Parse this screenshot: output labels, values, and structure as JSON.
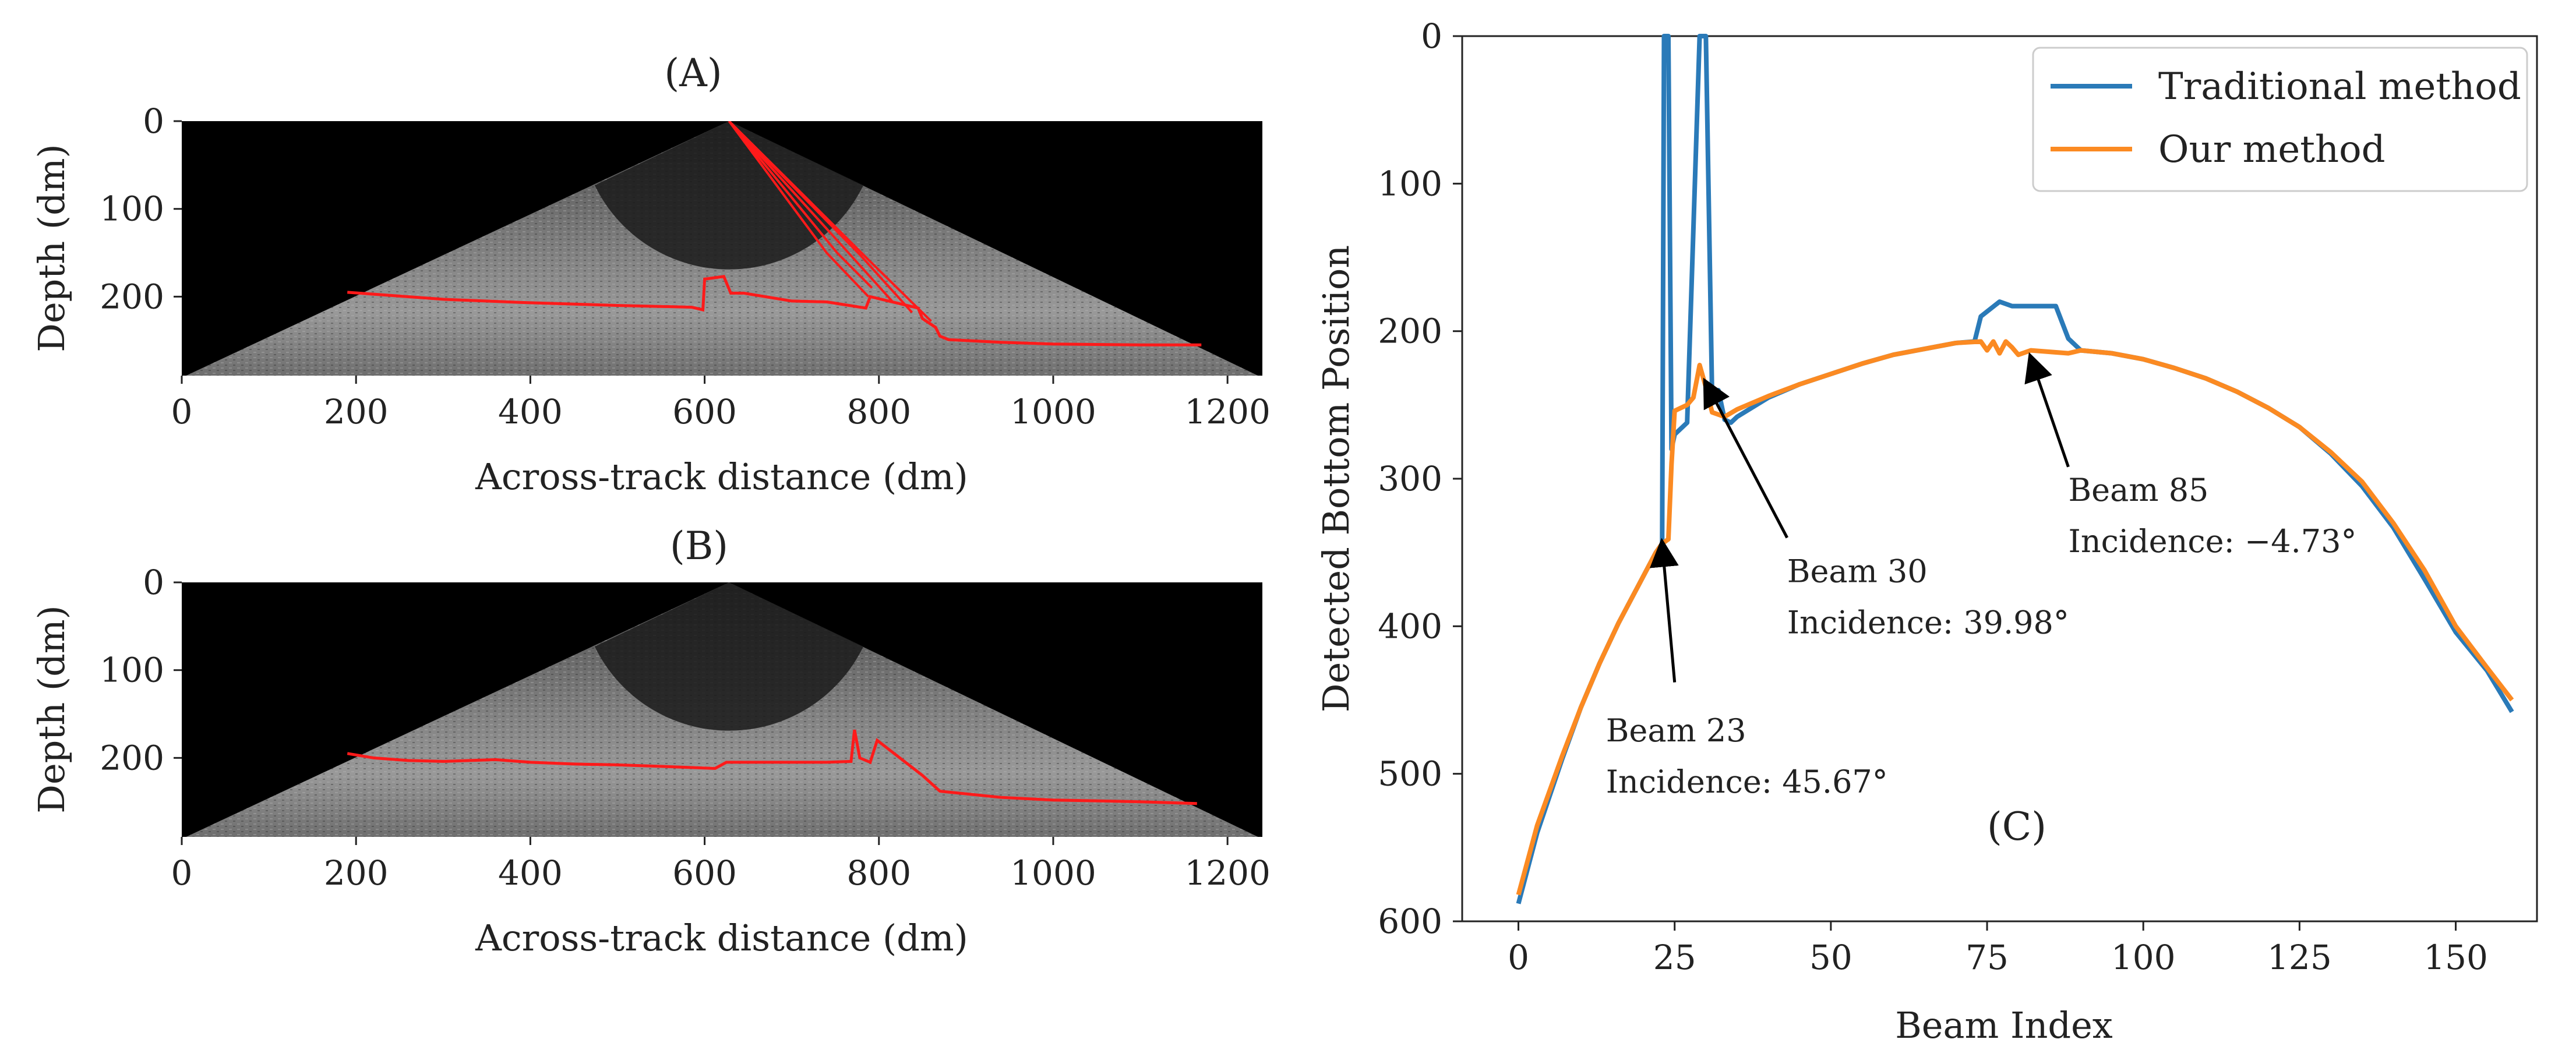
{
  "chart_data": [
    {
      "id": "A",
      "type": "image",
      "title": "(A)",
      "xlabel": "Across-track distance (dm)",
      "ylabel": "Depth (dm)",
      "xlim": [
        0,
        1240
      ],
      "ylim": [
        290,
        0
      ],
      "xticks": [
        0,
        200,
        400,
        600,
        800,
        1000,
        1200
      ],
      "yticks": [
        0,
        100,
        200
      ],
      "detected_bottom": {
        "color": "#ff1a1a",
        "points": [
          [
            190,
            195
          ],
          [
            300,
            203
          ],
          [
            400,
            207
          ],
          [
            500,
            210
          ],
          [
            585,
            212
          ],
          [
            598,
            215
          ],
          [
            600,
            180
          ],
          [
            622,
            177
          ],
          [
            630,
            196
          ],
          [
            645,
            196
          ],
          [
            700,
            205
          ],
          [
            740,
            206
          ],
          [
            785,
            213
          ],
          [
            790,
            200
          ],
          [
            845,
            213
          ],
          [
            850,
            225
          ],
          [
            865,
            235
          ],
          [
            870,
            245
          ],
          [
            880,
            249
          ],
          [
            940,
            252
          ],
          [
            1000,
            254
          ],
          [
            1100,
            255
          ],
          [
            1170,
            255
          ]
        ]
      },
      "false_beams": [
        [
          [
            628,
            0
          ],
          [
            740,
            150
          ],
          [
            788,
            200
          ]
        ],
        [
          [
            628,
            0
          ],
          [
            752,
            150
          ],
          [
            792,
            190
          ]
        ],
        [
          [
            628,
            0
          ],
          [
            765,
            150
          ],
          [
            815,
            205
          ]
        ],
        [
          [
            628,
            0
          ],
          [
            778,
            152
          ],
          [
            838,
            218
          ]
        ],
        [
          [
            628,
            0
          ],
          [
            788,
            158
          ],
          [
            860,
            228
          ]
        ]
      ]
    },
    {
      "id": "B",
      "type": "image",
      "title": "(B)",
      "xlabel": "Across-track distance (dm)",
      "ylabel": "Depth (dm)",
      "xlim": [
        0,
        1240
      ],
      "ylim": [
        290,
        0
      ],
      "xticks": [
        0,
        200,
        400,
        600,
        800,
        1000,
        1200
      ],
      "yticks": [
        0,
        100,
        200
      ],
      "detected_bottom": {
        "color": "#ff1a1a",
        "points": [
          [
            190,
            195
          ],
          [
            220,
            200
          ],
          [
            260,
            203
          ],
          [
            300,
            204
          ],
          [
            360,
            202
          ],
          [
            400,
            205
          ],
          [
            450,
            207
          ],
          [
            500,
            208
          ],
          [
            560,
            210
          ],
          [
            612,
            212
          ],
          [
            625,
            205
          ],
          [
            680,
            205
          ],
          [
            740,
            205
          ],
          [
            768,
            204
          ],
          [
            772,
            168
          ],
          [
            778,
            200
          ],
          [
            790,
            205
          ],
          [
            798,
            180
          ],
          [
            850,
            220
          ],
          [
            870,
            238
          ],
          [
            940,
            245
          ],
          [
            1000,
            248
          ],
          [
            1100,
            250
          ],
          [
            1165,
            252
          ]
        ]
      }
    },
    {
      "id": "C",
      "type": "line",
      "title": "(C)",
      "xlabel": "Beam Index",
      "ylabel": "Detected Bottom Position",
      "xlim": [
        -9,
        163
      ],
      "ylim": [
        600,
        0
      ],
      "xticks": [
        0,
        25,
        50,
        75,
        100,
        125,
        150
      ],
      "yticks": [
        0,
        100,
        200,
        300,
        400,
        500,
        600
      ],
      "legend_position": "top-right",
      "series": [
        {
          "name": "Traditional method",
          "color": "#2a7ab8",
          "points": [
            [
              0,
              588
            ],
            [
              3,
              540
            ],
            [
              7,
              490
            ],
            [
              10,
              455
            ],
            [
              13,
              425
            ],
            [
              16,
              398
            ],
            [
              19,
              374
            ],
            [
              22,
              350
            ],
            [
              23,
              344
            ],
            [
              23.3,
              0
            ],
            [
              24,
              0
            ],
            [
              24.5,
              280
            ],
            [
              25,
              270
            ],
            [
              27,
              262
            ],
            [
              29,
              0
            ],
            [
              30,
              0
            ],
            [
              31,
              245
            ],
            [
              32,
              240
            ],
            [
              33,
              260
            ],
            [
              34,
              262
            ],
            [
              35,
              258
            ],
            [
              40,
              245
            ],
            [
              45,
              236
            ],
            [
              50,
              229
            ],
            [
              55,
              222
            ],
            [
              60,
              216
            ],
            [
              65,
              212
            ],
            [
              70,
              208
            ],
            [
              73,
              207
            ],
            [
              74,
              190
            ],
            [
              77,
              180
            ],
            [
              79,
              183
            ],
            [
              86,
              183
            ],
            [
              88,
              205
            ],
            [
              90,
              213
            ],
            [
              95,
              215
            ],
            [
              100,
              219
            ],
            [
              105,
              225
            ],
            [
              110,
              232
            ],
            [
              115,
              241
            ],
            [
              120,
              252
            ],
            [
              125,
              265
            ],
            [
              130,
              283
            ],
            [
              135,
              305
            ],
            [
              140,
              333
            ],
            [
              145,
              368
            ],
            [
              150,
              404
            ],
            [
              155,
              430
            ],
            [
              159,
              458
            ]
          ]
        },
        {
          "name": "Our method",
          "color": "#fb8a22",
          "points": [
            [
              0,
              582
            ],
            [
              3,
              535
            ],
            [
              7,
              488
            ],
            [
              10,
              455
            ],
            [
              13,
              425
            ],
            [
              16,
              398
            ],
            [
              19,
              374
            ],
            [
              22,
              350
            ],
            [
              23,
              344
            ],
            [
              24,
              341
            ],
            [
              24.5,
              290
            ],
            [
              25,
              254
            ],
            [
              26,
              252
            ],
            [
              27,
              250
            ],
            [
              28,
              245
            ],
            [
              29,
              223
            ],
            [
              30,
              238
            ],
            [
              31,
              255
            ],
            [
              33,
              258
            ],
            [
              35,
              253
            ],
            [
              40,
              244
            ],
            [
              45,
              236
            ],
            [
              50,
              229
            ],
            [
              55,
              222
            ],
            [
              60,
              216
            ],
            [
              65,
              212
            ],
            [
              70,
              208
            ],
            [
              74,
              207
            ],
            [
              75,
              213
            ],
            [
              76,
              207
            ],
            [
              77,
              215
            ],
            [
              78,
              207
            ],
            [
              79,
              211
            ],
            [
              80,
              216
            ],
            [
              82,
              213
            ],
            [
              85,
              214
            ],
            [
              88,
              215
            ],
            [
              90,
              213
            ],
            [
              95,
              215
            ],
            [
              100,
              219
            ],
            [
              105,
              225
            ],
            [
              110,
              232
            ],
            [
              115,
              241
            ],
            [
              120,
              252
            ],
            [
              125,
              265
            ],
            [
              130,
              282
            ],
            [
              135,
              302
            ],
            [
              140,
              330
            ],
            [
              145,
              362
            ],
            [
              150,
              400
            ],
            [
              155,
              428
            ],
            [
              159,
              450
            ]
          ]
        }
      ],
      "annotations": [
        {
          "lines": [
            "Beam 23",
            "Incidence: 45.67°"
          ],
          "target": [
            23,
            344
          ],
          "arrow_tail": [
            25,
            438
          ],
          "text_at": [
            14,
            478
          ]
        },
        {
          "lines": [
            "Beam 30",
            "Incidence: 39.98°"
          ],
          "target": [
            30,
            235
          ],
          "arrow_tail": [
            43,
            340
          ],
          "text_at": [
            43,
            370
          ]
        },
        {
          "lines": [
            "Beam 85",
            "Incidence: −4.73°"
          ],
          "target": [
            82,
            218
          ],
          "arrow_tail": [
            88,
            292
          ],
          "text_at": [
            88,
            315
          ]
        }
      ]
    }
  ]
}
